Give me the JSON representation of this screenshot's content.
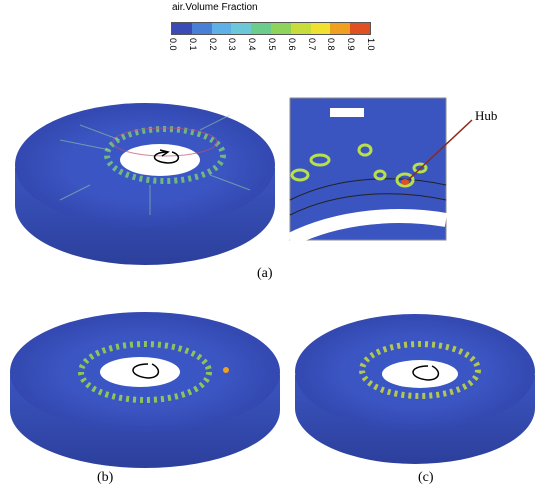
{
  "legend": {
    "title": "air.Volume Fraction",
    "ticks": [
      "0.0",
      "0.1",
      "0.2",
      "0.3",
      "0.4",
      "0.5",
      "0.6",
      "0.7",
      "0.8",
      "0.9",
      "1.0"
    ],
    "colors": [
      "#3b4bb5",
      "#4a7fd8",
      "#5fb0e6",
      "#6cc8d8",
      "#6ccc8c",
      "#8fd45a",
      "#c8dc3c",
      "#f0e030",
      "#f0a020",
      "#e05020"
    ]
  },
  "labels": {
    "a": "(a)",
    "b": "(b)",
    "c": "(c)",
    "hub": "Hub"
  }
}
